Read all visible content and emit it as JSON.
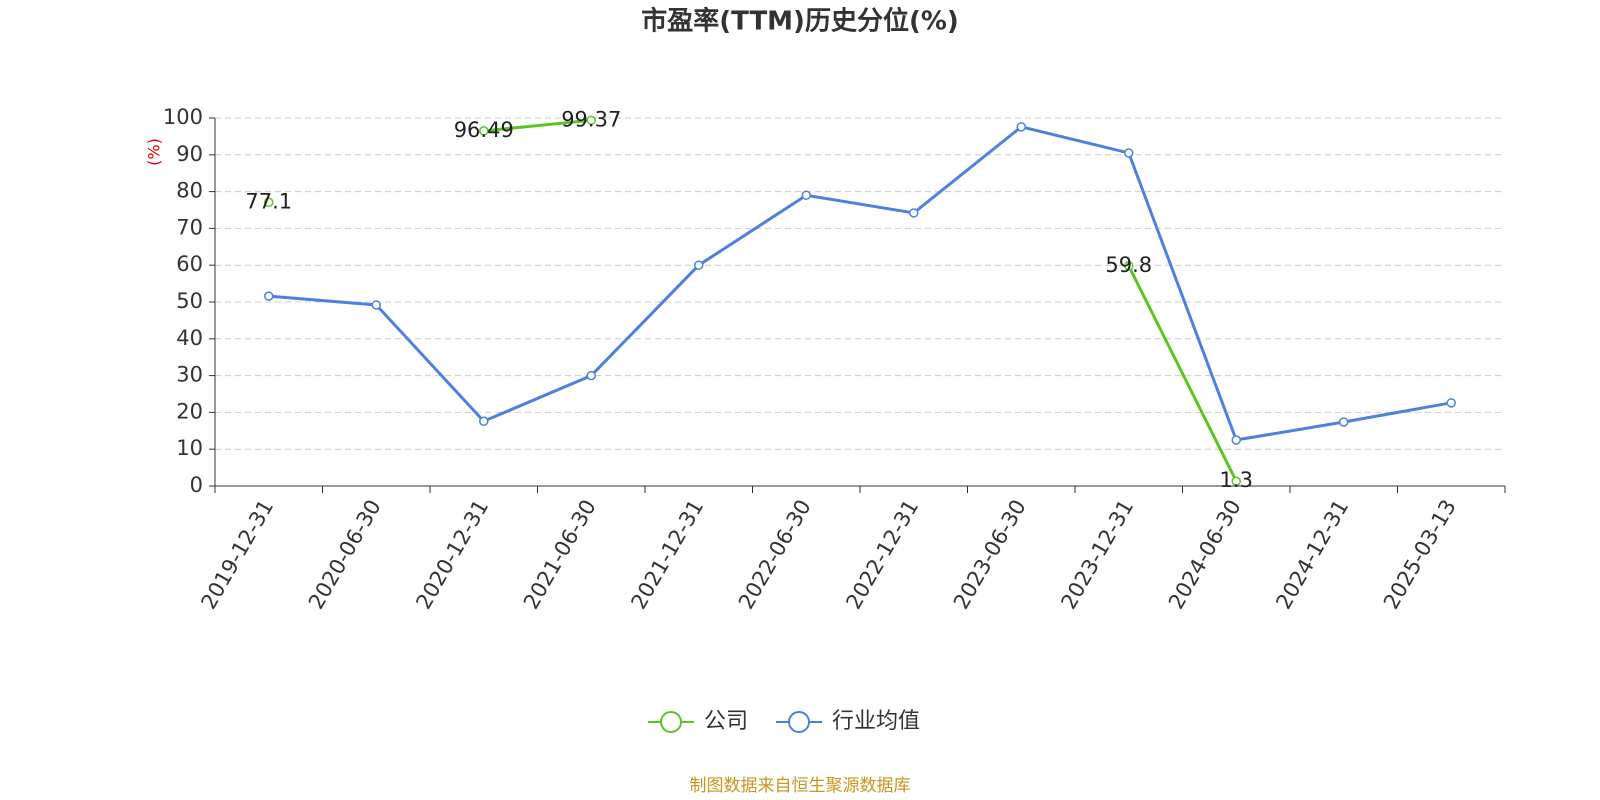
{
  "chart_data": {
    "type": "line",
    "title": "市盈率(TTM)历史分位(%)",
    "y_label": "(%)",
    "categories": [
      "2019-12-31",
      "2020-06-30",
      "2020-12-31",
      "2021-06-30",
      "2021-12-31",
      "2022-06-30",
      "2022-12-31",
      "2023-06-30",
      "2023-12-31",
      "2024-06-30",
      "2024-12-31",
      "2025-03-13"
    ],
    "series": [
      {
        "name": "公司",
        "color": "#5cc424",
        "data_labels": true,
        "values": [
          77.1,
          null,
          96.49,
          99.37,
          null,
          null,
          null,
          null,
          59.8,
          1.3,
          null,
          null
        ]
      },
      {
        "name": "行业均值",
        "color": "#4f80dd",
        "data_labels": false,
        "values": [
          51.6,
          49.2,
          17.6,
          30.0,
          60.0,
          79.0,
          74.2,
          97.6,
          90.5,
          12.5,
          17.4,
          22.6
        ]
      }
    ],
    "ylim": [
      0,
      100
    ],
    "yticks": [
      0,
      10,
      20,
      30,
      40,
      50,
      60,
      70,
      80,
      90,
      100
    ],
    "grid": true,
    "source": "制图数据来自恒生聚源数据库"
  }
}
